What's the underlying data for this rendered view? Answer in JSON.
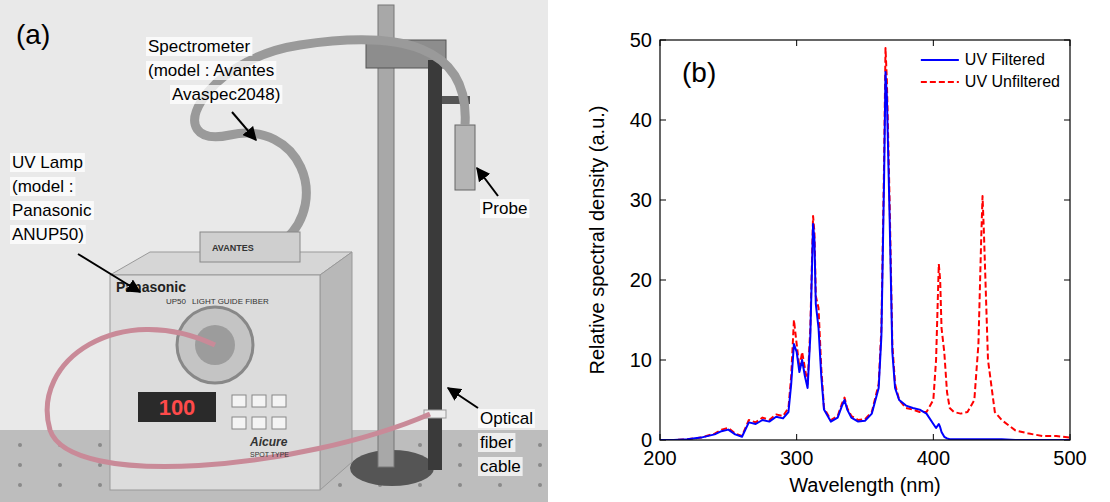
{
  "photo": {
    "label": "(a)",
    "annotations": [
      {
        "lines": [
          "Spectrometer",
          "(model : Avantes",
          "Avaspec2048)"
        ]
      },
      {
        "lines": [
          "UV Lamp",
          "(model :",
          "Panasonic",
          "ANUP50)"
        ]
      },
      {
        "lines": [
          "Probe"
        ]
      },
      {
        "lines": [
          "Optical",
          "fiber",
          "cable"
        ]
      }
    ],
    "device_texts": [
      "Panasonic",
      "UP50",
      "LIGHT GUIDE FIBER",
      "Aicure",
      "SPOT TYPE",
      "100",
      "AVANTES"
    ]
  },
  "chart_data": {
    "type": "line",
    "label": "(b)",
    "x_label": "Wavelength (nm)",
    "y_label": "Relative spectral density (a.u.)",
    "x": [
      200,
      210,
      220,
      230,
      240,
      245,
      250,
      255,
      260,
      265,
      270,
      275,
      280,
      285,
      290,
      294,
      296,
      298,
      300,
      302,
      304,
      306,
      308,
      310,
      312,
      313,
      314,
      316,
      318,
      320,
      325,
      330,
      333,
      335,
      337,
      340,
      345,
      350,
      355,
      360,
      362,
      364,
      365,
      366,
      368,
      370,
      372,
      375,
      380,
      385,
      390,
      395,
      400,
      402,
      404,
      405,
      406,
      408,
      410,
      412,
      415,
      420,
      425,
      430,
      433,
      435,
      436,
      437,
      440,
      445,
      450,
      460,
      470,
      480,
      490,
      500
    ],
    "series": [
      {
        "name": "UV Filtered",
        "color": "#0000ff",
        "line_style": "solid",
        "values": [
          0,
          0,
          0.1,
          0.3,
          0.7,
          1.1,
          1.3,
          0.7,
          0.4,
          2.2,
          2,
          2.5,
          2.3,
          2.9,
          2.7,
          3.5,
          7,
          12,
          11,
          8.5,
          10,
          8,
          6.5,
          13,
          27,
          25,
          17,
          14,
          8,
          3.8,
          2.3,
          2.8,
          4.2,
          5,
          3.8,
          2.8,
          2.3,
          2.4,
          3.3,
          6.5,
          13,
          33,
          46,
          43,
          28,
          11,
          6.5,
          5,
          4.3,
          4,
          3.8,
          3.3,
          2,
          1.5,
          2,
          1.6,
          1,
          0.4,
          0.2,
          0.1,
          0.1,
          0.1,
          0.1,
          0.1,
          0.1,
          0.1,
          0.1,
          0.1,
          0.1,
          0.1,
          0.1,
          0,
          0,
          0,
          0,
          0
        ]
      },
      {
        "name": "UV Unfiltered",
        "color": "#ff0000",
        "line_style": "dashed",
        "values": [
          0,
          0,
          0.1,
          0.3,
          0.8,
          1.3,
          1.5,
          0.8,
          0.5,
          2.5,
          2.2,
          2.8,
          2.5,
          3.2,
          3,
          4,
          8,
          15,
          12,
          9,
          11,
          9,
          7,
          14,
          28,
          26,
          18,
          16.5,
          9,
          4,
          2.5,
          3,
          4.5,
          5.3,
          4,
          3,
          2.5,
          2.6,
          3.5,
          7,
          14,
          35,
          49,
          45,
          30,
          12,
          7,
          5,
          4,
          3.8,
          3.5,
          3.5,
          5,
          10,
          22,
          20,
          14,
          11,
          6,
          4,
          3.5,
          3.3,
          3.5,
          5,
          12,
          25,
          30.5,
          26,
          10,
          3.5,
          2.5,
          1.2,
          0.8,
          0.5,
          0.5,
          0.3
        ]
      }
    ],
    "xlim": [
      200,
      500
    ],
    "xticks": [
      200,
      300,
      400,
      500
    ],
    "ylim": [
      0,
      50
    ],
    "yticks": [
      0,
      10,
      20,
      30,
      40,
      50
    ],
    "legend": "upper right"
  }
}
